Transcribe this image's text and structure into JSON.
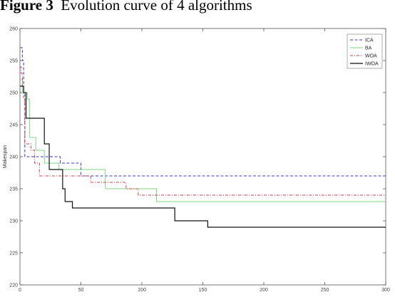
{
  "caption": {
    "label": "Figure 3",
    "text": "Evolution curve of 4 algorithms"
  },
  "chart_data": {
    "type": "line",
    "title": "",
    "xlabel": "",
    "ylabel": "Makespan",
    "xlim": [
      0,
      300
    ],
    "ylim": [
      220,
      260
    ],
    "xticks": [
      0,
      50,
      100,
      150,
      200,
      250,
      300
    ],
    "yticks": [
      220,
      225,
      230,
      235,
      240,
      245,
      250,
      255,
      260
    ],
    "grid": false,
    "step": true,
    "legend_position": "top-right",
    "series": [
      {
        "name": "ICA",
        "color": "#3a3ac8",
        "dash": "dashed",
        "x": [
          0,
          2,
          3,
          4,
          5,
          33,
          50,
          300
        ],
        "y": [
          257,
          255,
          250,
          240,
          240,
          239,
          237,
          237
        ]
      },
      {
        "name": "BA",
        "color": "#7ed67e",
        "dash": "solid",
        "x": [
          0,
          2,
          6,
          8,
          13,
          20,
          32,
          45,
          70,
          112,
          300
        ],
        "y": [
          252,
          250,
          249,
          243,
          241,
          239,
          238,
          238,
          235,
          233,
          233
        ]
      },
      {
        "name": "WOA",
        "color": "#d93a3a",
        "dash": "dashdot",
        "x": [
          0,
          1,
          2,
          3,
          4,
          6,
          9,
          12,
          16,
          36,
          58,
          87,
          97,
          300
        ],
        "y": [
          254,
          253,
          251,
          249,
          242,
          242,
          241,
          239,
          237,
          237,
          236,
          235,
          234,
          234
        ]
      },
      {
        "name": "IWOA",
        "color": "#111111",
        "dash": "solid",
        "x": [
          0,
          3,
          5,
          18,
          20,
          24,
          32,
          35,
          37,
          40,
          43,
          127,
          154,
          300
        ],
        "y": [
          251,
          250,
          246,
          246,
          242,
          238,
          238,
          235,
          233,
          233,
          232,
          230,
          229,
          229
        ]
      }
    ]
  }
}
